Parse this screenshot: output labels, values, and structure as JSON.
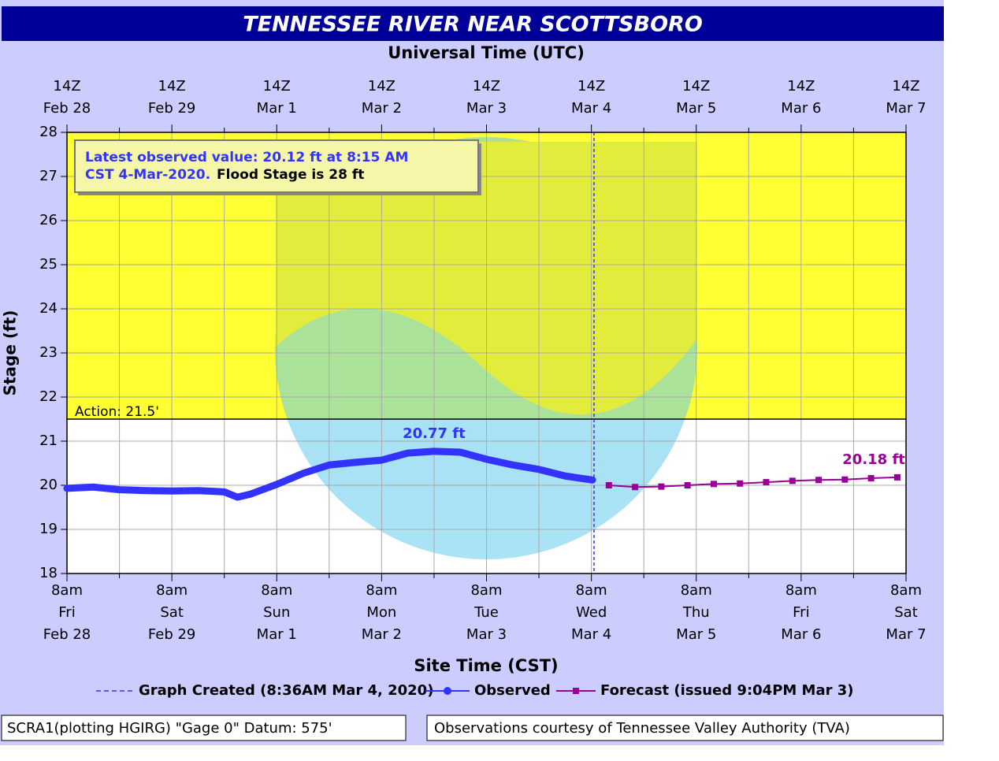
{
  "chart_data": {
    "type": "line",
    "title": "TENNESSEE RIVER NEAR SCOTTSBORO",
    "x2_label": "Universal Time (UTC)",
    "x_label": "Site Time (CST)",
    "y_label": "Stage (ft)",
    "xlim": [
      "2020-02-28T08:00",
      "2020-03-07T08:00"
    ],
    "xticks": [
      {
        "value": "2020-02-28T08:00",
        "label": [
          "8am",
          "Fri",
          "Feb 28"
        ]
      },
      {
        "value": "2020-02-29T08:00",
        "label": [
          "8am",
          "Sat",
          "Feb 29"
        ]
      },
      {
        "value": "2020-03-01T08:00",
        "label": [
          "8am",
          "Sun",
          "Mar 1"
        ]
      },
      {
        "value": "2020-03-02T08:00",
        "label": [
          "8am",
          "Mon",
          "Mar 2"
        ]
      },
      {
        "value": "2020-03-03T08:00",
        "label": [
          "8am",
          "Tue",
          "Mar 3"
        ]
      },
      {
        "value": "2020-03-04T08:00",
        "label": [
          "8am",
          "Wed",
          "Mar 4"
        ]
      },
      {
        "value": "2020-03-05T08:00",
        "label": [
          "8am",
          "Thu",
          "Mar 5"
        ]
      },
      {
        "value": "2020-03-06T08:00",
        "label": [
          "8am",
          "Fri",
          "Mar 6"
        ]
      },
      {
        "value": "2020-03-07T08:00",
        "label": [
          "8am",
          "Sat",
          "Mar 7"
        ]
      }
    ],
    "x2ticks": [
      {
        "value": "2020-02-28T08:00",
        "label": [
          "14Z",
          "Feb 28"
        ]
      },
      {
        "value": "2020-02-29T08:00",
        "label": [
          "14Z",
          "Feb 29"
        ]
      },
      {
        "value": "2020-03-01T08:00",
        "label": [
          "14Z",
          "Mar 1"
        ]
      },
      {
        "value": "2020-03-02T08:00",
        "label": [
          "14Z",
          "Mar 2"
        ]
      },
      {
        "value": "2020-03-03T08:00",
        "label": [
          "14Z",
          "Mar 3"
        ]
      },
      {
        "value": "2020-03-04T08:00",
        "label": [
          "14Z",
          "Mar 4"
        ]
      },
      {
        "value": "2020-03-05T08:00",
        "label": [
          "14Z",
          "Mar 5"
        ]
      },
      {
        "value": "2020-03-06T08:00",
        "label": [
          "14Z",
          "Mar 6"
        ]
      },
      {
        "value": "2020-03-07T08:00",
        "label": [
          "14Z",
          "Mar 7"
        ]
      }
    ],
    "xminorticks": [
      "2020-02-28T20:00",
      "2020-02-29T20:00",
      "2020-03-01T20:00",
      "2020-03-02T20:00",
      "2020-03-03T20:00",
      "2020-03-04T20:00",
      "2020-03-05T20:00",
      "2020-03-06T20:00"
    ],
    "ylim": [
      18,
      28
    ],
    "yticks": [
      18,
      19,
      20,
      21,
      22,
      23,
      24,
      25,
      26,
      27,
      28
    ],
    "grid": true,
    "thresholds": [
      {
        "label": "Action: 21.5'",
        "value": 21.5,
        "color": "#ffff33"
      }
    ],
    "created_line": {
      "x": "2020-03-04T08:36",
      "label": "Graph Created (8:36AM Mar 4, 2020)",
      "color": "#3333ff"
    },
    "annotation": {
      "lines": [
        [
          "Latest observed value: 20.12 ft at 8:15 AM"
        ],
        [
          "CST 4-Mar-2020.",
          "Flood Stage is 28 ft"
        ]
      ]
    },
    "series": [
      {
        "name": "Observed",
        "color": "#3333ff",
        "x": [
          "2020-02-28T08:00",
          "2020-02-28T14:00",
          "2020-02-28T20:00",
          "2020-02-29T02:00",
          "2020-02-29T08:00",
          "2020-02-29T14:00",
          "2020-02-29T20:00",
          "2020-02-29T23:00",
          "2020-03-01T02:00",
          "2020-03-01T08:00",
          "2020-03-01T14:00",
          "2020-03-01T20:00",
          "2020-03-02T02:00",
          "2020-03-02T08:00",
          "2020-03-02T14:00",
          "2020-03-02T20:00",
          "2020-03-03T02:00",
          "2020-03-03T08:00",
          "2020-03-03T14:00",
          "2020-03-03T20:00",
          "2020-03-04T02:00",
          "2020-03-04T08:15"
        ],
        "values": [
          19.93,
          19.96,
          19.9,
          19.88,
          19.87,
          19.88,
          19.85,
          19.73,
          19.8,
          20.02,
          20.27,
          20.46,
          20.52,
          20.57,
          20.73,
          20.77,
          20.75,
          20.59,
          20.46,
          20.36,
          20.21,
          20.12
        ],
        "value_labels": [
          null,
          null,
          null,
          null,
          null,
          null,
          null,
          null,
          null,
          null,
          null,
          null,
          null,
          null,
          null,
          "20.77 ft",
          null,
          null,
          null,
          null,
          null,
          null
        ]
      },
      {
        "name": "Forecast (issued 9:04PM Mar 3)",
        "color": "#990099",
        "x": [
          "2020-03-04T12:00",
          "2020-03-04T18:00",
          "2020-03-05T00:00",
          "2020-03-05T06:00",
          "2020-03-05T12:00",
          "2020-03-05T18:00",
          "2020-03-06T00:00",
          "2020-03-06T06:00",
          "2020-03-06T12:00",
          "2020-03-06T18:00",
          "2020-03-07T00:00",
          "2020-03-07T06:00"
        ],
        "values": [
          20.0,
          19.96,
          19.97,
          20.0,
          20.03,
          20.04,
          20.07,
          20.1,
          20.12,
          20.13,
          20.16,
          20.18
        ],
        "value_labels": [
          null,
          null,
          null,
          null,
          null,
          null,
          null,
          null,
          null,
          null,
          null,
          "20.18 ft"
        ]
      }
    ],
    "footer": [
      "SCRA1(plotting HGIRG) \"Gage 0\" Datum: 575'",
      "Observations courtesy of Tennessee Valley Authority (TVA)"
    ]
  }
}
